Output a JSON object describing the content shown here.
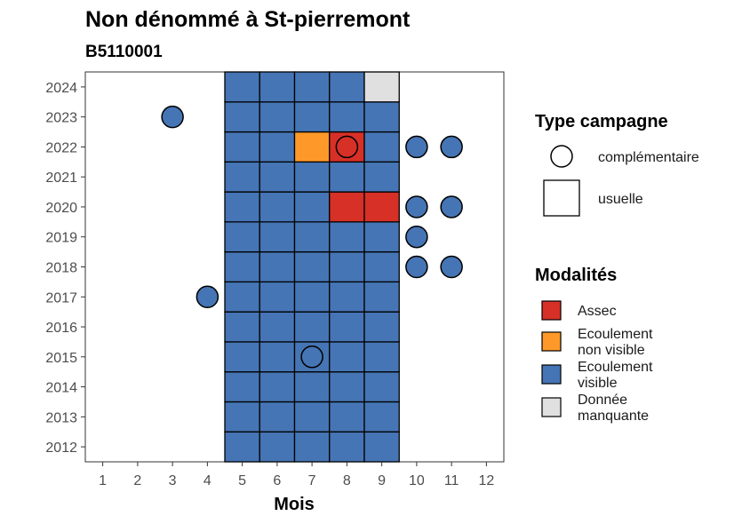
{
  "chart_data": {
    "type": "heatmap",
    "title": "Non dénommé à St-pierremont",
    "subtitle": "B5110001",
    "xlabel": "Mois",
    "ylabel": "",
    "x_ticks": [
      "1",
      "2",
      "3",
      "4",
      "5",
      "6",
      "7",
      "8",
      "9",
      "10",
      "11",
      "12"
    ],
    "y_ticks": [
      "2012",
      "2013",
      "2014",
      "2015",
      "2016",
      "2017",
      "2018",
      "2019",
      "2020",
      "2021",
      "2022",
      "2023",
      "2024"
    ],
    "xlim": [
      0.5,
      12.5
    ],
    "ylim": [
      2011.5,
      2024.5
    ],
    "grid": false,
    "colors": {
      "Assec": "#d73027",
      "Ecoulement non visible": "#fe9929",
      "Ecoulement visible": "#4575b4",
      "Donnée manquante": "#e0e0e0"
    },
    "usuelle_cells": [
      {
        "year": 2012,
        "values": {
          "5": "Ecoulement visible",
          "6": "Ecoulement visible",
          "7": "Ecoulement visible",
          "8": "Ecoulement visible",
          "9": "Ecoulement visible"
        }
      },
      {
        "year": 2013,
        "values": {
          "5": "Ecoulement visible",
          "6": "Ecoulement visible",
          "7": "Ecoulement visible",
          "8": "Ecoulement visible",
          "9": "Ecoulement visible"
        }
      },
      {
        "year": 2014,
        "values": {
          "5": "Ecoulement visible",
          "6": "Ecoulement visible",
          "7": "Ecoulement visible",
          "8": "Ecoulement visible",
          "9": "Ecoulement visible"
        }
      },
      {
        "year": 2015,
        "values": {
          "5": "Ecoulement visible",
          "6": "Ecoulement visible",
          "7": "Ecoulement visible",
          "8": "Ecoulement visible",
          "9": "Ecoulement visible"
        }
      },
      {
        "year": 2016,
        "values": {
          "5": "Ecoulement visible",
          "6": "Ecoulement visible",
          "7": "Ecoulement visible",
          "8": "Ecoulement visible",
          "9": "Ecoulement visible"
        }
      },
      {
        "year": 2017,
        "values": {
          "5": "Ecoulement visible",
          "6": "Ecoulement visible",
          "7": "Ecoulement visible",
          "8": "Ecoulement visible",
          "9": "Ecoulement visible"
        }
      },
      {
        "year": 2018,
        "values": {
          "5": "Ecoulement visible",
          "6": "Ecoulement visible",
          "7": "Ecoulement visible",
          "8": "Ecoulement visible",
          "9": "Ecoulement visible"
        }
      },
      {
        "year": 2019,
        "values": {
          "5": "Ecoulement visible",
          "6": "Ecoulement visible",
          "7": "Ecoulement visible",
          "8": "Ecoulement visible",
          "9": "Ecoulement visible"
        }
      },
      {
        "year": 2020,
        "values": {
          "5": "Ecoulement visible",
          "6": "Ecoulement visible",
          "7": "Ecoulement visible",
          "8": "Assec",
          "9": "Assec"
        }
      },
      {
        "year": 2021,
        "values": {
          "5": "Ecoulement visible",
          "6": "Ecoulement visible",
          "7": "Ecoulement visible",
          "8": "Ecoulement visible",
          "9": "Ecoulement visible"
        }
      },
      {
        "year": 2022,
        "values": {
          "5": "Ecoulement visible",
          "6": "Ecoulement visible",
          "7": "Ecoulement non visible",
          "8": "Assec",
          "9": "Ecoulement visible"
        }
      },
      {
        "year": 2023,
        "values": {
          "5": "Ecoulement visible",
          "6": "Ecoulement visible",
          "7": "Ecoulement visible",
          "8": "Ecoulement visible",
          "9": "Ecoulement visible"
        }
      },
      {
        "year": 2024,
        "values": {
          "5": "Ecoulement visible",
          "6": "Ecoulement visible",
          "7": "Ecoulement visible",
          "8": "Ecoulement visible",
          "9": "Donnée manquante"
        }
      }
    ],
    "complementaire_points": [
      {
        "year": 2023,
        "month": 3,
        "value": "Ecoulement visible"
      },
      {
        "year": 2022,
        "month": 8,
        "value": "Assec"
      },
      {
        "year": 2022,
        "month": 10,
        "value": "Ecoulement visible"
      },
      {
        "year": 2022,
        "month": 11,
        "value": "Ecoulement visible"
      },
      {
        "year": 2020,
        "month": 10,
        "value": "Ecoulement visible"
      },
      {
        "year": 2020,
        "month": 11,
        "value": "Ecoulement visible"
      },
      {
        "year": 2019,
        "month": 10,
        "value": "Ecoulement visible"
      },
      {
        "year": 2018,
        "month": 10,
        "value": "Ecoulement visible"
      },
      {
        "year": 2018,
        "month": 11,
        "value": "Ecoulement visible"
      },
      {
        "year": 2017,
        "month": 4,
        "value": "Ecoulement visible"
      },
      {
        "year": 2015,
        "month": 7,
        "value": "Ecoulement visible"
      }
    ],
    "legend": {
      "placement": "right",
      "type_title": "Type campagne",
      "type_items": [
        "complémentaire",
        "usuelle"
      ],
      "modalites_title": "Modalités",
      "modalites_items": [
        {
          "lines": [
            "Assec"
          ],
          "key": "Assec"
        },
        {
          "lines": [
            "Ecoulement",
            "non visible"
          ],
          "key": "Ecoulement non visible"
        },
        {
          "lines": [
            "Ecoulement",
            "visible"
          ],
          "key": "Ecoulement visible"
        },
        {
          "lines": [
            "Donnée",
            "manquante"
          ],
          "key": "Donnée manquante"
        }
      ]
    }
  }
}
